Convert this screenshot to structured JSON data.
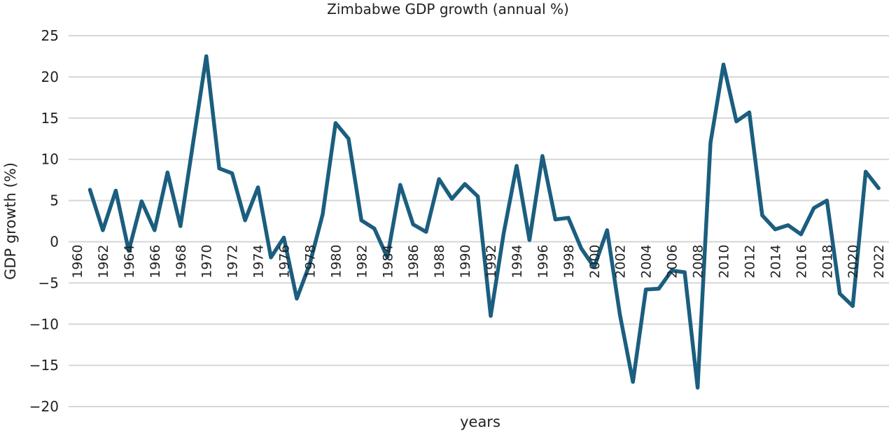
{
  "chart_data": {
    "type": "line",
    "title": "Zimbabwe GDP growth (annual %)",
    "xlabel": "years",
    "ylabel": "GDP growth (%)",
    "ylim": [
      -20,
      25
    ],
    "yticks": [
      25,
      20,
      15,
      10,
      5,
      0,
      -5,
      -10,
      -15,
      -20
    ],
    "xtick_labels": [
      "1960",
      "1962",
      "1964",
      "1966",
      "1968",
      "1970",
      "1972",
      "1974",
      "1976",
      "1978",
      "1980",
      "1982",
      "1984",
      "1986",
      "1988",
      "1990",
      "1992",
      "1994",
      "1996",
      "1998",
      "2000",
      "2002",
      "2004",
      "2006",
      "2008",
      "2010",
      "2012",
      "2014",
      "2016",
      "2018",
      "2020",
      "2022"
    ],
    "grid": true,
    "line_color": "#1b5e7f",
    "x": [
      1960,
      1961,
      1962,
      1963,
      1964,
      1965,
      1966,
      1967,
      1968,
      1969,
      1970,
      1971,
      1972,
      1973,
      1974,
      1975,
      1976,
      1977,
      1978,
      1979,
      1980,
      1981,
      1982,
      1983,
      1984,
      1985,
      1986,
      1987,
      1988,
      1989,
      1990,
      1991,
      1992,
      1993,
      1994,
      1995,
      1996,
      1997,
      1998,
      1999,
      2000,
      2001,
      2002,
      2003,
      2004,
      2005,
      2006,
      2007,
      2008,
      2009,
      2010,
      2011,
      2012,
      2013,
      2014,
      2015,
      2016,
      2017,
      2018,
      2019,
      2020,
      2021,
      2022
    ],
    "values": [
      null,
      6.3,
      1.4,
      6.2,
      -1.1,
      4.9,
      1.4,
      8.4,
      1.9,
      12.2,
      22.5,
      8.9,
      8.3,
      2.6,
      6.6,
      -1.9,
      0.5,
      -6.9,
      -2.7,
      3.3,
      14.4,
      12.5,
      2.6,
      1.6,
      -1.9,
      6.9,
      2.1,
      1.2,
      7.6,
      5.2,
      7.0,
      5.5,
      -9.0,
      1.0,
      9.2,
      0.2,
      10.4,
      2.7,
      2.9,
      -0.8,
      -3.1,
      1.4,
      -8.9,
      -17.0,
      -5.8,
      -5.7,
      -3.5,
      -3.7,
      -17.7,
      12.0,
      21.5,
      14.6,
      15.7,
      3.2,
      1.5,
      2.0,
      0.9,
      4.1,
      5.0,
      -6.3,
      -7.8,
      8.5,
      6.5
    ]
  }
}
